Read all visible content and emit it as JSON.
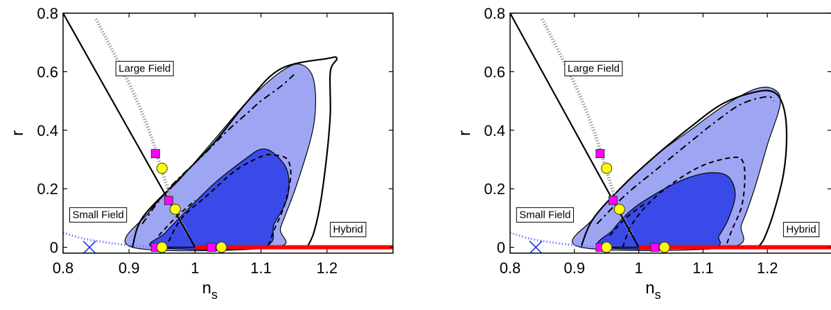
{
  "chart_data": [
    {
      "type": "contour",
      "xlabel": "n",
      "xlabel_sub": "s",
      "ylabel": "r",
      "xlim": [
        0.8,
        1.3
      ],
      "ylim": [
        -0.02,
        0.8
      ],
      "xticks": [
        0.8,
        0.9,
        1.0,
        1.1,
        1.2
      ],
      "xtick_labels": [
        "0.8",
        "0.9",
        "1",
        "1.1",
        "1.2"
      ],
      "yticks": [
        0,
        0.2,
        0.4,
        0.6,
        0.8
      ],
      "ytick_labels": [
        "0",
        "0.2",
        "0.4",
        "0.6",
        "0.8"
      ],
      "region_labels": [
        {
          "text": "Large Field",
          "x": 0.88,
          "y": 0.6
        },
        {
          "text": "Small Field",
          "x": 0.81,
          "y": 0.1
        },
        {
          "text": "Hybrid",
          "x": 1.205,
          "y": 0.05
        }
      ],
      "contours": {
        "outer_light": [
          [
            0.905,
            0.0
          ],
          [
            0.93,
            0.12
          ],
          [
            0.98,
            0.24
          ],
          [
            1.03,
            0.37
          ],
          [
            1.08,
            0.5
          ],
          [
            1.13,
            0.6
          ],
          [
            1.16,
            0.625
          ],
          [
            1.18,
            0.57
          ],
          [
            1.18,
            0.42
          ],
          [
            1.155,
            0.22
          ],
          [
            1.13,
            0.07
          ],
          [
            1.12,
            0.0
          ]
        ],
        "inner_dark": [
          [
            0.94,
            0.0
          ],
          [
            0.955,
            0.05
          ],
          [
            0.985,
            0.12
          ],
          [
            1.03,
            0.22
          ],
          [
            1.075,
            0.3
          ],
          [
            1.1,
            0.335
          ],
          [
            1.12,
            0.32
          ],
          [
            1.14,
            0.26
          ],
          [
            1.14,
            0.17
          ],
          [
            1.12,
            0.08
          ],
          [
            1.1,
            0.0
          ]
        ],
        "solid_outer": [
          [
            0.905,
            0.0
          ],
          [
            0.92,
            0.1
          ],
          [
            0.97,
            0.22
          ],
          [
            1.03,
            0.36
          ],
          [
            1.08,
            0.5
          ],
          [
            1.13,
            0.61
          ],
          [
            1.2,
            0.645
          ],
          [
            1.215,
            0.645
          ],
          [
            1.205,
            0.6
          ],
          [
            1.205,
            0.46
          ],
          [
            1.2,
            0.32
          ],
          [
            1.19,
            0.15
          ],
          [
            1.18,
            0.05
          ],
          [
            1.17,
            0.0
          ]
        ],
        "dashed_outer": [
          [
            0.92,
            0.08
          ],
          [
            0.96,
            0.2
          ],
          [
            1.01,
            0.31
          ],
          [
            1.05,
            0.4
          ],
          [
            1.08,
            0.46
          ],
          [
            1.1,
            0.5
          ],
          [
            1.13,
            0.55
          ],
          [
            1.15,
            0.59
          ]
        ],
        "dashed_inner": [
          [
            0.96,
            0.02
          ],
          [
            0.98,
            0.1
          ],
          [
            1.02,
            0.18
          ],
          [
            1.06,
            0.26
          ],
          [
            1.1,
            0.31
          ],
          [
            1.12,
            0.315
          ],
          [
            1.14,
            0.3
          ],
          [
            1.145,
            0.24
          ],
          [
            1.135,
            0.14
          ],
          [
            1.12,
            0.06
          ],
          [
            1.11,
            0.0
          ]
        ],
        "dashed_inner_2": [
          [
            0.945,
            0.04
          ],
          [
            0.97,
            0.1
          ],
          [
            1.0,
            0.16
          ]
        ]
      },
      "lines": {
        "small_large_boundary": [
          [
            0.8,
            0.8
          ],
          [
            1.0,
            0.0
          ]
        ],
        "hybrid_segment": [
          [
            1.0,
            0.0
          ],
          [
            1.3,
            0.0
          ]
        ],
        "dotted_curve": [
          [
            0.85,
            0.78
          ],
          [
            0.9,
            0.56
          ],
          [
            0.93,
            0.4
          ],
          [
            0.95,
            0.26
          ],
          [
            0.97,
            0.13
          ],
          [
            0.99,
            0.04
          ]
        ],
        "small_field_dotted": [
          [
            0.8,
            0.05
          ],
          [
            0.83,
            0.03
          ],
          [
            0.87,
            0.015
          ],
          [
            0.91,
            0.005
          ],
          [
            0.94,
            0.0
          ]
        ]
      },
      "markers": {
        "squares": [
          [
            0.94,
            0.32
          ],
          [
            0.96,
            0.16
          ],
          [
            0.94,
            0.0
          ],
          [
            1.025,
            0.0
          ]
        ],
        "circles": [
          [
            0.95,
            0.27
          ],
          [
            0.97,
            0.13
          ],
          [
            0.95,
            0.0
          ],
          [
            1.04,
            0.0
          ]
        ],
        "cross": [
          [
            0.84,
            0.0
          ]
        ]
      },
      "colors": {
        "light_fill": "#9ea6f4",
        "dark_fill": "#3a4ae8",
        "red": "#ff0000",
        "magenta": "#ff00ff",
        "yellow": "#ffff00",
        "dotted": "#a0a0a0",
        "small_dotted": "#6b7cff",
        "cross": "#1a2bd6"
      }
    },
    {
      "type": "contour",
      "xlabel": "n",
      "xlabel_sub": "s",
      "ylabel": "r",
      "xlim": [
        0.8,
        1.3
      ],
      "ylim": [
        -0.02,
        0.8
      ],
      "xticks": [
        0.8,
        0.9,
        1.0,
        1.1,
        1.2
      ],
      "xtick_labels": [
        "0.8",
        "0.9",
        "1",
        "1.1",
        "1.2"
      ],
      "yticks": [
        0,
        0.2,
        0.4,
        0.6,
        0.8
      ],
      "ytick_labels": [
        "0",
        "0.2",
        "0.4",
        "0.6",
        "0.8"
      ],
      "region_labels": [
        {
          "text": "Large Field",
          "x": 0.885,
          "y": 0.6
        },
        {
          "text": "Small Field",
          "x": 0.81,
          "y": 0.1
        },
        {
          "text": "Hybrid",
          "x": 1.225,
          "y": 0.05
        }
      ],
      "contours": {
        "outer_light": [
          [
            0.91,
            0.0
          ],
          [
            0.93,
            0.1
          ],
          [
            0.98,
            0.22
          ],
          [
            1.03,
            0.32
          ],
          [
            1.08,
            0.4
          ],
          [
            1.13,
            0.48
          ],
          [
            1.18,
            0.54
          ],
          [
            1.21,
            0.54
          ],
          [
            1.22,
            0.49
          ],
          [
            1.2,
            0.35
          ],
          [
            1.18,
            0.2
          ],
          [
            1.16,
            0.08
          ],
          [
            1.14,
            0.0
          ]
        ],
        "inner_dark": [
          [
            0.945,
            0.0
          ],
          [
            0.96,
            0.06
          ],
          [
            0.99,
            0.13
          ],
          [
            1.04,
            0.2
          ],
          [
            1.08,
            0.24
          ],
          [
            1.115,
            0.255
          ],
          [
            1.14,
            0.24
          ],
          [
            1.15,
            0.18
          ],
          [
            1.14,
            0.1
          ],
          [
            1.125,
            0.04
          ],
          [
            1.11,
            0.0
          ]
        ],
        "solid_outer": [
          [
            0.91,
            0.0
          ],
          [
            0.93,
            0.1
          ],
          [
            0.98,
            0.22
          ],
          [
            1.03,
            0.32
          ],
          [
            1.08,
            0.41
          ],
          [
            1.13,
            0.49
          ],
          [
            1.18,
            0.53
          ],
          [
            1.21,
            0.53
          ],
          [
            1.225,
            0.48
          ],
          [
            1.23,
            0.38
          ],
          [
            1.225,
            0.25
          ],
          [
            1.21,
            0.12
          ],
          [
            1.195,
            0.03
          ],
          [
            1.185,
            0.0
          ]
        ],
        "dashed_outer": [
          [
            0.935,
            0.08
          ],
          [
            0.98,
            0.18
          ],
          [
            1.03,
            0.27
          ],
          [
            1.08,
            0.36
          ],
          [
            1.12,
            0.43
          ],
          [
            1.16,
            0.49
          ],
          [
            1.2,
            0.515
          ],
          [
            1.21,
            0.5
          ]
        ],
        "dashed_inner": [
          [
            0.975,
            0.0
          ],
          [
            0.99,
            0.08
          ],
          [
            1.02,
            0.16
          ],
          [
            1.06,
            0.23
          ],
          [
            1.1,
            0.28
          ],
          [
            1.14,
            0.305
          ],
          [
            1.16,
            0.3
          ],
          [
            1.165,
            0.24
          ],
          [
            1.16,
            0.14
          ],
          [
            1.145,
            0.06
          ],
          [
            1.135,
            0.0
          ]
        ],
        "dashed_inner_2": [
          [
            0.955,
            0.04
          ],
          [
            0.98,
            0.1
          ],
          [
            1.01,
            0.15
          ]
        ]
      },
      "lines": {
        "small_large_boundary": [
          [
            0.8,
            0.8
          ],
          [
            1.0,
            0.0
          ]
        ],
        "hybrid_segment": [
          [
            1.0,
            0.0
          ],
          [
            1.3,
            0.0
          ]
        ],
        "dotted_curve": [
          [
            0.85,
            0.78
          ],
          [
            0.9,
            0.56
          ],
          [
            0.93,
            0.4
          ],
          [
            0.95,
            0.26
          ],
          [
            0.97,
            0.13
          ],
          [
            0.99,
            0.04
          ]
        ],
        "small_field_dotted": [
          [
            0.8,
            0.05
          ],
          [
            0.83,
            0.03
          ],
          [
            0.87,
            0.015
          ],
          [
            0.91,
            0.005
          ],
          [
            0.94,
            0.0
          ]
        ]
      },
      "markers": {
        "squares": [
          [
            0.94,
            0.32
          ],
          [
            0.96,
            0.16
          ],
          [
            0.94,
            0.0
          ],
          [
            1.025,
            0.0
          ]
        ],
        "circles": [
          [
            0.95,
            0.27
          ],
          [
            0.97,
            0.13
          ],
          [
            0.95,
            0.0
          ],
          [
            1.04,
            0.0
          ]
        ],
        "cross": [
          [
            0.84,
            0.0
          ]
        ]
      },
      "colors": {
        "light_fill": "#9ea6f4",
        "dark_fill": "#3a4ae8",
        "red": "#ff0000",
        "magenta": "#ff00ff",
        "yellow": "#ffff00",
        "dotted": "#a0a0a0",
        "small_dotted": "#6b7cff",
        "cross": "#1a2bd6"
      }
    }
  ]
}
